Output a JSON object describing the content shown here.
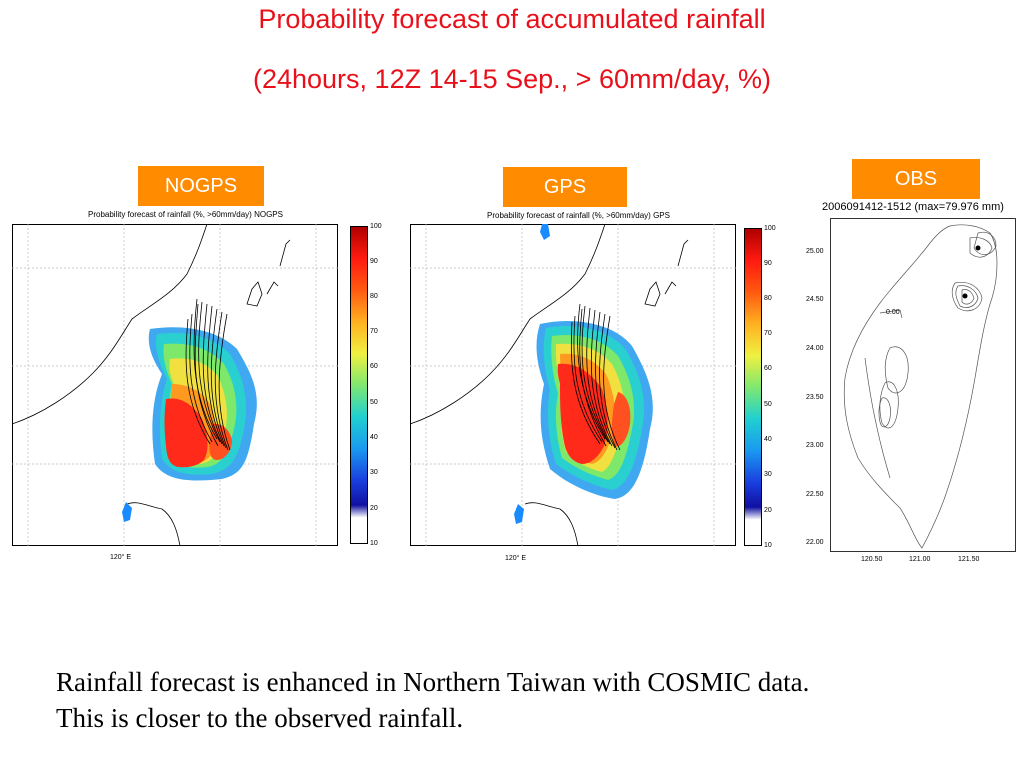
{
  "slide": {
    "title_line1": "Probability forecast of accumulated rainfall",
    "title_line2": "(24hours, 12Z 14-15 Sep., > 60mm/day, %)",
    "caption": "Rainfall forecast is enhanced in Northern Taiwan with COSMIC data. This is closer to the observed rainfall.",
    "accent_color": "#ff8c00",
    "title_color": "#e8101a"
  },
  "panels": {
    "nogps": {
      "tag": "NOGPS",
      "subtitle": "Probability forecast of rainfall (%, >60mm/day)  NOGPS",
      "x_label": "120° E"
    },
    "gps": {
      "tag": "GPS",
      "subtitle": "Probability forecast of rainfall (%, >60mm/day)  GPS",
      "x_label": "120° E"
    },
    "obs": {
      "tag": "OBS",
      "subtitle": "2006091412-1512 (max=79.976 mm)",
      "contour_label": "0.00",
      "y_ticks": [
        "25.00",
        "24.50",
        "24.00",
        "23.50",
        "23.00",
        "22.50",
        "22.00"
      ],
      "x_ticks": [
        "120.50",
        "121.00",
        "121.50"
      ]
    }
  },
  "colorbar": {
    "ticks": [
      "100",
      "90",
      "80",
      "70",
      "60",
      "50",
      "40",
      "30",
      "20",
      "10"
    ]
  }
}
